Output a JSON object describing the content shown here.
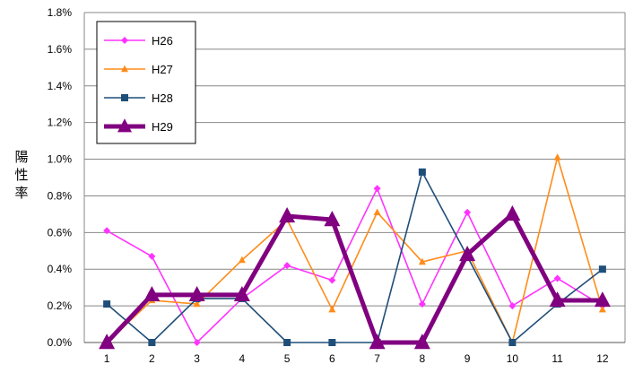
{
  "chart_data": {
    "type": "line",
    "ylabel": "陽性率",
    "ylim": [
      0,
      1.8
    ],
    "yticks": [
      "0.0%",
      "0.2%",
      "0.4%",
      "0.6%",
      "0.8%",
      "1.0%",
      "1.2%",
      "1.4%",
      "1.6%",
      "1.8%"
    ],
    "categories": [
      "1",
      "2",
      "3",
      "4",
      "5",
      "6",
      "7",
      "8",
      "9",
      "10",
      "11",
      "12"
    ],
    "grid": "horizontal",
    "legend_position": "top-left",
    "series": [
      {
        "name": "H26",
        "color": "#ff33ff",
        "marker": "diamond",
        "width": 1.6,
        "values": [
          0.61,
          0.47,
          0.0,
          0.24,
          0.42,
          0.34,
          0.84,
          0.21,
          0.71,
          0.2,
          0.35,
          0.2
        ]
      },
      {
        "name": "H27",
        "color": "#ff8c1a",
        "marker": "triangle",
        "width": 1.6,
        "values": [
          0.0,
          0.23,
          0.21,
          0.45,
          0.67,
          0.18,
          0.71,
          0.44,
          0.5,
          0.0,
          1.01,
          0.18
        ]
      },
      {
        "name": "H28",
        "color": "#1f4e79",
        "marker": "square",
        "width": 1.6,
        "values": [
          0.21,
          0.0,
          0.24,
          0.24,
          0.0,
          0.0,
          0.0,
          0.93,
          0.47,
          0.0,
          0.21,
          0.4
        ]
      },
      {
        "name": "H29",
        "color": "#800080",
        "marker": "triangle",
        "width": 5,
        "values": [
          0.0,
          0.26,
          0.26,
          0.26,
          0.69,
          0.67,
          0.0,
          0.0,
          0.48,
          0.7,
          0.23,
          0.23
        ]
      }
    ]
  }
}
